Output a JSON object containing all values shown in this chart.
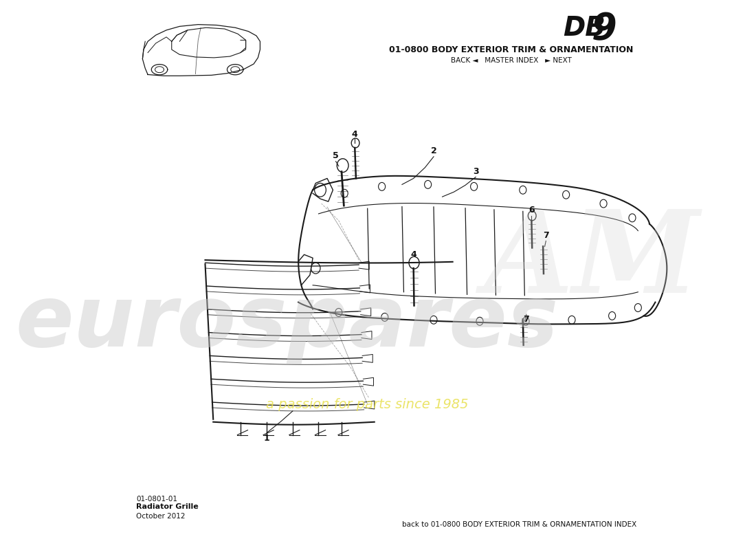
{
  "title_db": "DB",
  "title_9": "9",
  "subtitle": "01-0800 BODY EXTERIOR TRIM & ORNAMENTATION",
  "nav_text": "BACK ◄   MASTER INDEX   ► NEXT",
  "bottom_left_line1": "01-0801-01",
  "bottom_left_line2": "Radiator Grille",
  "bottom_left_line3": "October 2012",
  "bottom_right": "back to 01-0800 BODY EXTERIOR TRIM & ORNAMENTATION INDEX",
  "bg_color": "#ffffff",
  "line_color": "#1a1a1a",
  "watermark_color": "#c8c8c8",
  "watermark_yellow": "#e8e050"
}
